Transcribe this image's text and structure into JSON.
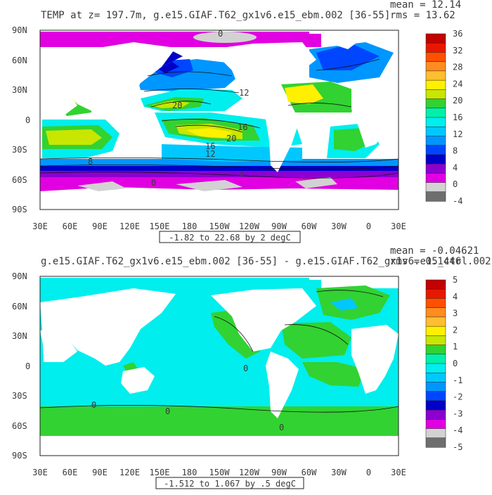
{
  "panels": [
    {
      "title": "TEMP at z= 197.7m, g.e15.GIAF.T62_gx1v6.e15_ebm.002 [36-55]",
      "stats_mean": "mean = 12.14",
      "stats_rms": "rms = 13.62",
      "range_label": "-1.82 to 22.68 by 2 degC",
      "colorbar": {
        "labels": [
          "36",
          "32",
          "28",
          "24",
          "20",
          "16",
          "12",
          "8",
          "4",
          "0",
          "-4"
        ],
        "colors": [
          "#c40000",
          "#e81800",
          "#ff5000",
          "#ff8c1e",
          "#ffbe32",
          "#fff000",
          "#c8e600",
          "#32d232",
          "#00f0aa",
          "#00eeee",
          "#00c8ff",
          "#0096ff",
          "#0046ff",
          "#0000c8",
          "#8c00d2",
          "#e100e1",
          "#d2d2d2",
          "#6e6e6e"
        ]
      },
      "contour_labels": [
        "0",
        "12",
        "20",
        "16",
        "20",
        "16",
        "12",
        "8",
        "4",
        "0"
      ]
    },
    {
      "title": "g.e15.GIAF.T62_gx1v6.e15_ebm.002 [36-55] - g.e15.GIAF.T62_gx1v6.e15_ctrl.002",
      "stats_mean": "mean = -0.04621",
      "stats_rms": "rms = 0.1446",
      "range_label": "-1.512 to 1.067 by .5 degC",
      "colorbar": {
        "labels": [
          "5",
          "4",
          "3",
          "2",
          "1",
          "0",
          "-1",
          "-2",
          "-3",
          "-4",
          "-5"
        ],
        "colors": [
          "#c40000",
          "#e81800",
          "#ff5000",
          "#ff8c1e",
          "#ffbe32",
          "#fff000",
          "#c8e600",
          "#32d232",
          "#00f0aa",
          "#00eeee",
          "#00c8ff",
          "#0096ff",
          "#0046ff",
          "#0000c8",
          "#8c00d2",
          "#e100e1",
          "#d2d2d2",
          "#6e6e6e"
        ]
      },
      "contour_labels": [
        "0",
        "0",
        "0",
        "0"
      ]
    }
  ],
  "axes": {
    "x_ticks": [
      "30E",
      "60E",
      "90E",
      "120E",
      "150E",
      "180",
      "150W",
      "120W",
      "90W",
      "60W",
      "30W",
      "0",
      "30E"
    ],
    "y_ticks": [
      "90N",
      "60N",
      "30N",
      "0",
      "30S",
      "60S",
      "90S"
    ]
  },
  "chart_data": [
    {
      "type": "heatmap",
      "title": "TEMP at z= 197.7m, g.e15.GIAF.T62_gx1v6.e15_ebm.002 [36-55]",
      "xlabel": "",
      "ylabel": "",
      "x_tick_labels": [
        "30E",
        "60E",
        "90E",
        "120E",
        "150E",
        "180",
        "150W",
        "120W",
        "90W",
        "60W",
        "30W",
        "0",
        "30E"
      ],
      "y_tick_labels": [
        "90N",
        "60N",
        "30N",
        "0",
        "30S",
        "60S",
        "90S"
      ],
      "xlim": [
        30,
        390
      ],
      "ylim": [
        -90,
        90
      ],
      "colorbar_levels": [
        36,
        34,
        32,
        30,
        28,
        26,
        24,
        22,
        20,
        18,
        16,
        14,
        12,
        10,
        8,
        6,
        4,
        2,
        0,
        -2,
        -4
      ],
      "value_range": [
        -1.82,
        22.68
      ],
      "contour_interval": 2,
      "units": "degC",
      "mean": 12.14,
      "rms": 13.62
    },
    {
      "type": "heatmap",
      "title": "g.e15.GIAF.T62_gx1v6.e15_ebm.002 [36-55] - g.e15.GIAF.T62_gx1v6.e15_ctrl.002",
      "xlabel": "",
      "ylabel": "",
      "x_tick_labels": [
        "30E",
        "60E",
        "90E",
        "120E",
        "150E",
        "180",
        "150W",
        "120W",
        "90W",
        "60W",
        "30W",
        "0",
        "30E"
      ],
      "y_tick_labels": [
        "90N",
        "60N",
        "30N",
        "0",
        "30S",
        "60S",
        "90S"
      ],
      "xlim": [
        30,
        390
      ],
      "ylim": [
        -90,
        90
      ],
      "colorbar_levels": [
        5,
        4.5,
        4,
        3.5,
        3,
        2.5,
        2,
        1.5,
        1,
        0.5,
        0,
        -0.5,
        -1,
        -1.5,
        -2,
        -2.5,
        -3,
        -3.5,
        -4,
        -4.5,
        -5
      ],
      "value_range": [
        -1.512,
        1.067
      ],
      "contour_interval": 0.5,
      "units": "degC",
      "mean": -0.04621,
      "rms": 0.1446
    }
  ]
}
